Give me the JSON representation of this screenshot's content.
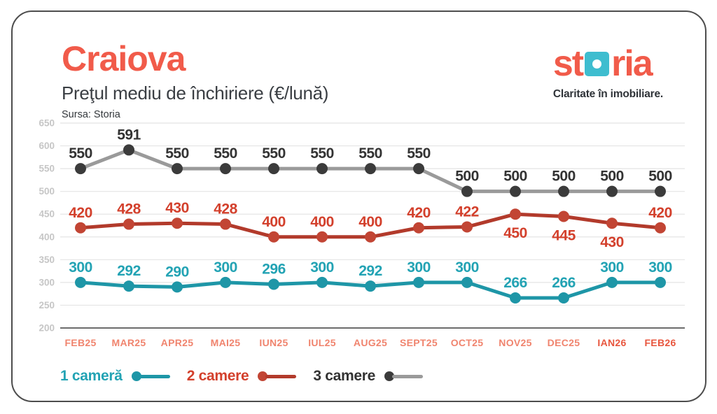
{
  "header": {
    "title": "Craiova",
    "subtitle": "Preţul mediu de închiriere (€/lună)",
    "source": "Sursa: Storia"
  },
  "logo": {
    "part1": "st",
    "part2": "ria",
    "tagline": "Claritate în imobiliare.",
    "coral": "#F15B4A",
    "teal_square": "#3EBDCF"
  },
  "chart_data": {
    "type": "line",
    "title": "Craiova",
    "subtitle": "Preţul mediu de închiriere (€/lună)",
    "source": "Sursa: Storia",
    "categories": [
      "FEB25",
      "MAR25",
      "APR25",
      "MAI25",
      "IUN25",
      "IUL25",
      "AUG25",
      "SEPT25",
      "OCT25",
      "NOV25",
      "DEC25",
      "IAN26",
      "FEB26"
    ],
    "bold_categories": [
      "IAN26",
      "FEB26"
    ],
    "series": [
      {
        "name": "1 cameră",
        "values": [
          300,
          292,
          290,
          300,
          296,
          300,
          292,
          300,
          300,
          266,
          266,
          300,
          300
        ],
        "color": "#1E96A7",
        "dot_color": "#1E96A7",
        "label_color": "#23A3B4",
        "labels_below": []
      },
      {
        "name": "2 camere",
        "values": [
          420,
          428,
          430,
          428,
          400,
          400,
          400,
          420,
          422,
          450,
          445,
          430,
          420
        ],
        "color": "#B23A2B",
        "dot_color": "#C24534",
        "label_color": "#D3402C",
        "labels_below": [
          9,
          10,
          11
        ]
      },
      {
        "name": "3 camere",
        "values": [
          550,
          591,
          550,
          550,
          550,
          550,
          550,
          550,
          500,
          500,
          500,
          500,
          500
        ],
        "color": "#9A9A9A",
        "dot_color": "#3B3B3B",
        "label_color": "#333333",
        "labels_below": []
      }
    ],
    "ylim": [
      200,
      650
    ],
    "ytick_step": 50,
    "grid": true,
    "legend_position": "bottom",
    "axis": {
      "tick_color": "#C6C6C6",
      "grid_color": "#E4E4E4",
      "baseline_color": "#3C3C3C",
      "xlabel_color": "#F0846E",
      "xlabel_bold_color": "#E8563E"
    }
  }
}
